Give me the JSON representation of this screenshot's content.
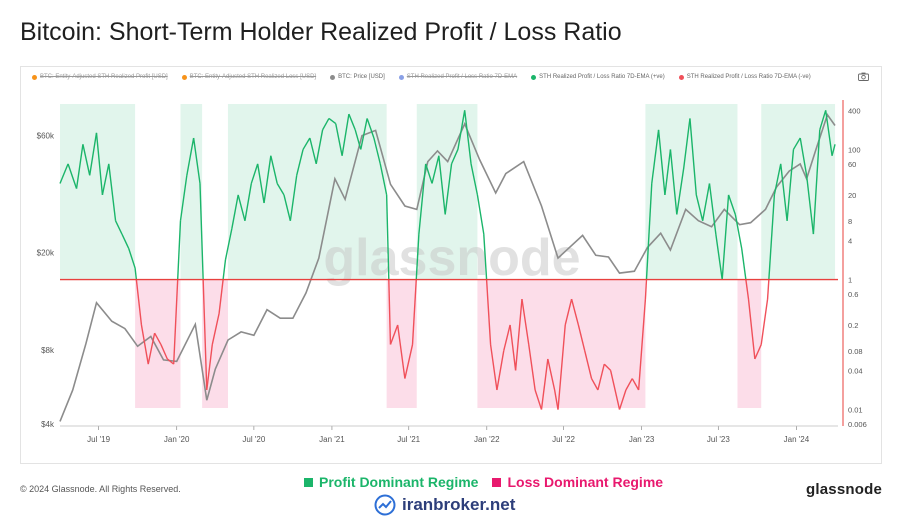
{
  "title": "Bitcoin: Short-Term Holder Realized Profit / Loss Ratio",
  "legend": [
    {
      "label": "BTC: Entity-Adjusted STH Realized Profit [USD]",
      "color": "#f7931a",
      "disabled": true
    },
    {
      "label": "BTC: Entity-Adjusted STH Realized Loss [USD]",
      "color": "#f7931a",
      "disabled": true
    },
    {
      "label": "BTC: Price [USD]",
      "color": "#8c8c8c",
      "disabled": false
    },
    {
      "label": "STH Realized Profit / Loss Ratio 7D-EMA",
      "color": "#8aa0e6",
      "disabled": true
    },
    {
      "label": "STH Realized Profit / Loss Ratio 7D-EMA (+ve)",
      "color": "#1bb56a",
      "disabled": false
    },
    {
      "label": "STH Realized Profit / Loss Ratio 7D-EMA (-ve)",
      "color": "#f0505a",
      "disabled": false
    }
  ],
  "watermark": "glassnode",
  "regimes": {
    "profit_label": "Profit Dominant Regime",
    "loss_label": "Loss Dominant Regime",
    "profit_color": "#1bb56a",
    "loss_color": "#e8196e"
  },
  "footer": {
    "copyright": "© 2024 Glassnode. All Rights Reserved.",
    "brand": "glassnode",
    "broker": "iranbroker.net"
  },
  "chart_data": {
    "type": "line",
    "x_ticks": [
      "Jul '19",
      "Jan '20",
      "Jul '20",
      "Jan '21",
      "Jul '21",
      "Jan '22",
      "Jul '22",
      "Jan '23",
      "Jul '23",
      "Jan '24"
    ],
    "y_left_ticks": [
      "$4k",
      "$8k",
      "$20k",
      "$60k"
    ],
    "y_right_ticks": [
      "400",
      "100",
      "60",
      "20",
      "8",
      "4",
      "1",
      "0.6",
      "0.2",
      "0.08",
      "0.04",
      "0.01",
      "0.006"
    ],
    "y_left_scale": "log",
    "y_right_scale": "log",
    "y_left_range": [
      4000,
      80000
    ],
    "y_right_range": [
      0.006,
      500
    ],
    "threshold": 1,
    "series": [
      {
        "name": "BTC: Price [USD]",
        "color": "#8c8c8c",
        "x": [
          "2019-04-01",
          "2019-05-01",
          "2019-06-01",
          "2019-06-26",
          "2019-08-01",
          "2019-09-01",
          "2019-10-01",
          "2019-11-01",
          "2019-12-01",
          "2020-01-01",
          "2020-02-14",
          "2020-03-12",
          "2020-04-01",
          "2020-05-01",
          "2020-06-01",
          "2020-07-01",
          "2020-08-01",
          "2020-09-01",
          "2020-10-01",
          "2020-11-01",
          "2020-12-01",
          "2021-01-08",
          "2021-02-01",
          "2021-03-13",
          "2021-04-14",
          "2021-05-19",
          "2021-06-22",
          "2021-07-20",
          "2021-08-15",
          "2021-09-07",
          "2021-10-01",
          "2021-11-10",
          "2021-12-15",
          "2022-01-22",
          "2022-02-15",
          "2022-03-29",
          "2022-05-10",
          "2022-06-18",
          "2022-07-15",
          "2022-08-15",
          "2022-09-15",
          "2022-10-15",
          "2022-11-10",
          "2022-12-15",
          "2023-01-15",
          "2023-02-15",
          "2023-03-10",
          "2023-04-15",
          "2023-05-15",
          "2023-06-15",
          "2023-07-15",
          "2023-08-20",
          "2023-09-15",
          "2023-10-20",
          "2023-11-15",
          "2023-12-15",
          "2024-01-10",
          "2024-01-25",
          "2024-02-15",
          "2024-03-14",
          "2024-04-01"
        ],
        "y": [
          4100,
          5500,
          8500,
          12500,
          10500,
          9800,
          8300,
          9100,
          7300,
          7200,
          10200,
          5000,
          6700,
          8800,
          9500,
          9200,
          11700,
          10800,
          10800,
          13700,
          19000,
          40000,
          33000,
          60000,
          63000,
          38000,
          31000,
          30000,
          47000,
          52000,
          47000,
          67000,
          48000,
          35000,
          42000,
          47000,
          31000,
          19000,
          21000,
          23500,
          19500,
          19200,
          16500,
          16800,
          21000,
          24000,
          20500,
          30000,
          27000,
          25500,
          30000,
          26000,
          26500,
          30000,
          37000,
          43000,
          46000,
          40000,
          52000,
          73000,
          66000
        ]
      },
      {
        "name": "STH Realized Profit / Loss Ratio 7D-EMA",
        "color_positive": "#1bb56a",
        "color_negative": "#f0505a",
        "x": [
          "2019-04-01",
          "2019-04-20",
          "2019-05-10",
          "2019-05-25",
          "2019-06-10",
          "2019-06-26",
          "2019-07-10",
          "2019-07-25",
          "2019-08-10",
          "2019-08-25",
          "2019-09-10",
          "2019-09-25",
          "2019-10-10",
          "2019-10-26",
          "2019-11-10",
          "2019-11-25",
          "2019-12-10",
          "2019-12-25",
          "2020-01-10",
          "2020-01-25",
          "2020-02-10",
          "2020-02-25",
          "2020-03-12",
          "2020-03-25",
          "2020-04-10",
          "2020-04-25",
          "2020-05-10",
          "2020-05-25",
          "2020-06-10",
          "2020-06-25",
          "2020-07-10",
          "2020-07-25",
          "2020-08-10",
          "2020-08-25",
          "2020-09-10",
          "2020-09-25",
          "2020-10-10",
          "2020-10-25",
          "2020-11-10",
          "2020-11-25",
          "2020-12-10",
          "2020-12-25",
          "2021-01-10",
          "2021-01-25",
          "2021-02-10",
          "2021-02-25",
          "2021-03-10",
          "2021-03-25",
          "2021-04-10",
          "2021-04-25",
          "2021-05-10",
          "2021-05-19",
          "2021-06-05",
          "2021-06-22",
          "2021-07-10",
          "2021-07-25",
          "2021-08-10",
          "2021-08-25",
          "2021-09-10",
          "2021-09-25",
          "2021-10-10",
          "2021-10-25",
          "2021-11-10",
          "2021-11-25",
          "2021-12-10",
          "2021-12-25",
          "2022-01-10",
          "2022-01-25",
          "2022-02-10",
          "2022-02-25",
          "2022-03-10",
          "2022-03-25",
          "2022-04-10",
          "2022-04-25",
          "2022-05-10",
          "2022-05-25",
          "2022-06-10",
          "2022-06-18",
          "2022-07-05",
          "2022-07-20",
          "2022-08-05",
          "2022-08-20",
          "2022-09-05",
          "2022-09-20",
          "2022-10-05",
          "2022-10-20",
          "2022-11-10",
          "2022-11-25",
          "2022-12-10",
          "2022-12-25",
          "2023-01-10",
          "2023-01-25",
          "2023-02-10",
          "2023-02-25",
          "2023-03-10",
          "2023-03-25",
          "2023-04-10",
          "2023-04-25",
          "2023-05-10",
          "2023-05-25",
          "2023-06-10",
          "2023-06-25",
          "2023-07-10",
          "2023-07-25",
          "2023-08-10",
          "2023-08-25",
          "2023-09-10",
          "2023-09-25",
          "2023-10-10",
          "2023-10-25",
          "2023-11-10",
          "2023-11-25",
          "2023-12-10",
          "2023-12-25",
          "2024-01-10",
          "2024-01-25",
          "2024-02-10",
          "2024-02-25",
          "2024-03-10",
          "2024-03-25",
          "2024-04-01"
        ],
        "y": [
          30,
          60,
          25,
          120,
          40,
          180,
          20,
          60,
          8,
          5,
          3,
          1.5,
          0.2,
          0.05,
          0.15,
          0.1,
          0.06,
          0.05,
          8,
          40,
          150,
          30,
          0.02,
          0.1,
          0.3,
          2,
          6,
          20,
          8,
          30,
          60,
          15,
          80,
          30,
          20,
          8,
          40,
          100,
          150,
          60,
          200,
          300,
          250,
          80,
          350,
          200,
          100,
          300,
          150,
          60,
          20,
          0.1,
          0.2,
          0.03,
          0.1,
          5,
          60,
          30,
          80,
          10,
          60,
          100,
          400,
          60,
          20,
          5,
          0.1,
          0.02,
          0.08,
          0.2,
          0.04,
          0.5,
          0.1,
          0.02,
          0.01,
          0.06,
          0.02,
          0.01,
          0.2,
          0.5,
          0.2,
          0.08,
          0.03,
          0.02,
          0.05,
          0.04,
          0.01,
          0.02,
          0.03,
          0.02,
          0.5,
          30,
          200,
          20,
          100,
          10,
          50,
          300,
          20,
          8,
          30,
          5,
          1,
          20,
          10,
          3,
          0.5,
          0.06,
          0.1,
          0.5,
          20,
          60,
          8,
          100,
          150,
          40,
          5,
          200,
          400,
          80,
          120
        ]
      }
    ],
    "profit_regimes": [
      [
        "2019-04-01",
        "2019-09-25"
      ],
      [
        "2020-01-10",
        "2020-03-01"
      ],
      [
        "2020-05-01",
        "2021-05-10"
      ],
      [
        "2021-07-20",
        "2021-12-10"
      ],
      [
        "2023-01-10",
        "2023-08-15"
      ],
      [
        "2023-10-10",
        "2024-04-01"
      ]
    ],
    "loss_regimes": [
      [
        "2019-09-25",
        "2020-01-10"
      ],
      [
        "2020-03-01",
        "2020-05-01"
      ],
      [
        "2021-05-10",
        "2021-07-20"
      ],
      [
        "2021-12-10",
        "2023-01-10"
      ],
      [
        "2023-08-15",
        "2023-10-10"
      ]
    ]
  }
}
